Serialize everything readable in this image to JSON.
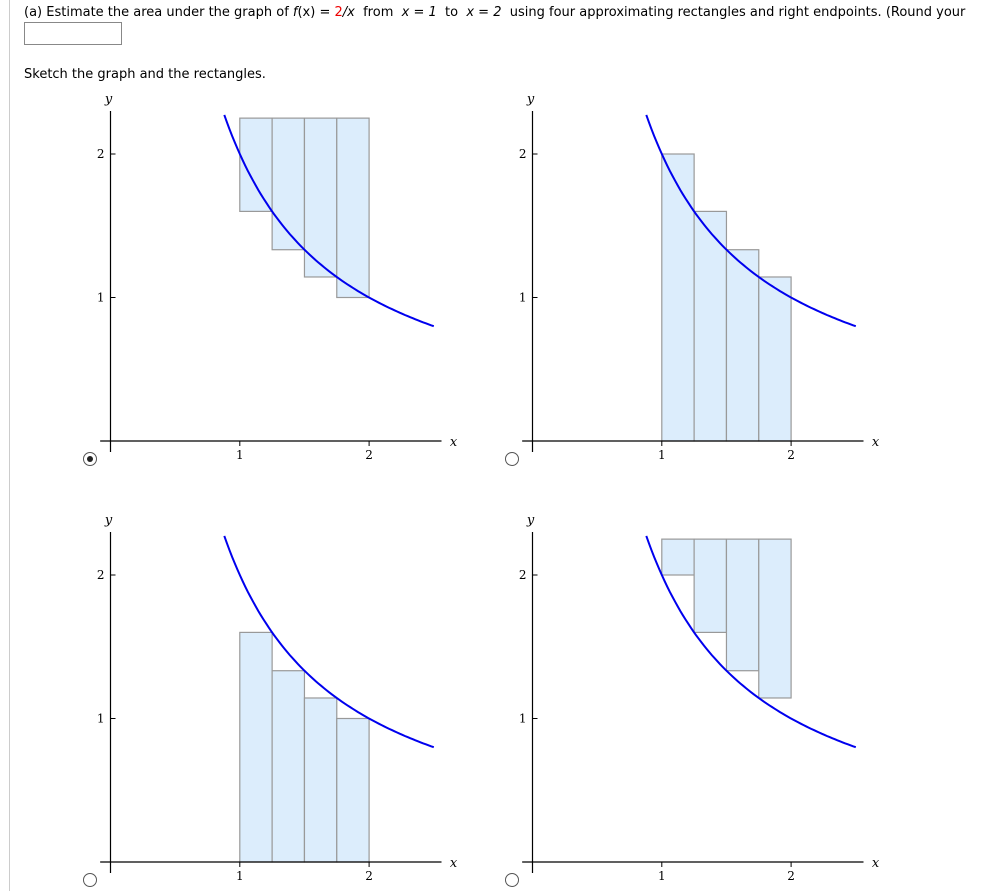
{
  "question": {
    "prefix": "(a) Estimate the area under the graph of ",
    "fname": "f",
    "fx_open": "(x) = ",
    "numerator": "2",
    "fx_rest": "/x",
    "from": "  from  ",
    "x1": "x = 1",
    "to": "  to  ",
    "x2": "x = 2",
    "suffix": "  using four approximating rectangles and right endpoints. (Round your",
    "answer_value": ""
  },
  "instruction": "Sketch the graph and the rectangles.",
  "colors": {
    "curve": "#0000ee",
    "rect_fill": "#dcedfc",
    "rect_stroke": "#999999",
    "numerator": "#ee0000"
  },
  "selected_option": 0,
  "chart_data": [
    {
      "type": "area",
      "function": "2/x",
      "xlabel": "x",
      "ylabel": "y",
      "xticks": [
        "1",
        "2"
      ],
      "yticks": [
        "1",
        "2"
      ],
      "xlim": [
        -0.08,
        2.56
      ],
      "ylim": [
        -0.08,
        2.3
      ],
      "curve_domain": [
        0.88,
        2.5
      ],
      "rectangles": [
        {
          "x0": 1,
          "x1": 1.25,
          "y0": 1.6,
          "y1": 2.25
        },
        {
          "x0": 1.25,
          "x1": 1.5,
          "y0": 1.333,
          "y1": 2.25
        },
        {
          "x0": 1.5,
          "x1": 1.75,
          "y0": 1.143,
          "y1": 2.25
        },
        {
          "x0": 1.75,
          "x1": 2,
          "y0": 1,
          "y1": 2.25
        }
      ]
    },
    {
      "type": "area",
      "function": "2/x",
      "xlabel": "x",
      "ylabel": "y",
      "xticks": [
        "1",
        "2"
      ],
      "yticks": [
        "1",
        "2"
      ],
      "xlim": [
        -0.08,
        2.56
      ],
      "ylim": [
        -0.08,
        2.3
      ],
      "curve_domain": [
        0.88,
        2.5
      ],
      "rectangles": [
        {
          "x0": 1,
          "x1": 1.25,
          "y0": 0,
          "y1": 2
        },
        {
          "x0": 1.25,
          "x1": 1.5,
          "y0": 0,
          "y1": 1.6
        },
        {
          "x0": 1.5,
          "x1": 1.75,
          "y0": 0,
          "y1": 1.333
        },
        {
          "x0": 1.75,
          "x1": 2,
          "y0": 0,
          "y1": 1.143
        }
      ]
    },
    {
      "type": "area",
      "function": "2/x",
      "xlabel": "x",
      "ylabel": "y",
      "xticks": [
        "1",
        "2"
      ],
      "yticks": [
        "1",
        "2"
      ],
      "xlim": [
        -0.08,
        2.56
      ],
      "ylim": [
        -0.08,
        2.3
      ],
      "curve_domain": [
        0.88,
        2.5
      ],
      "rectangles": [
        {
          "x0": 1,
          "x1": 1.25,
          "y0": 0,
          "y1": 1.6
        },
        {
          "x0": 1.25,
          "x1": 1.5,
          "y0": 0,
          "y1": 1.333
        },
        {
          "x0": 1.5,
          "x1": 1.75,
          "y0": 0,
          "y1": 1.143
        },
        {
          "x0": 1.75,
          "x1": 2,
          "y0": 0,
          "y1": 1
        }
      ]
    },
    {
      "type": "area",
      "function": "2/x",
      "xlabel": "x",
      "ylabel": "y",
      "xticks": [
        "1",
        "2"
      ],
      "yticks": [
        "1",
        "2"
      ],
      "xlim": [
        -0.08,
        2.56
      ],
      "ylim": [
        -0.08,
        2.3
      ],
      "curve_domain": [
        0.88,
        2.5
      ],
      "rectangles": [
        {
          "x0": 1,
          "x1": 1.25,
          "y0": 2,
          "y1": 2.25
        },
        {
          "x0": 1.25,
          "x1": 1.5,
          "y0": 1.6,
          "y1": 2.25
        },
        {
          "x0": 1.5,
          "x1": 1.75,
          "y0": 1.333,
          "y1": 2.25
        },
        {
          "x0": 1.75,
          "x1": 2,
          "y0": 1.143,
          "y1": 2.25
        }
      ]
    }
  ]
}
